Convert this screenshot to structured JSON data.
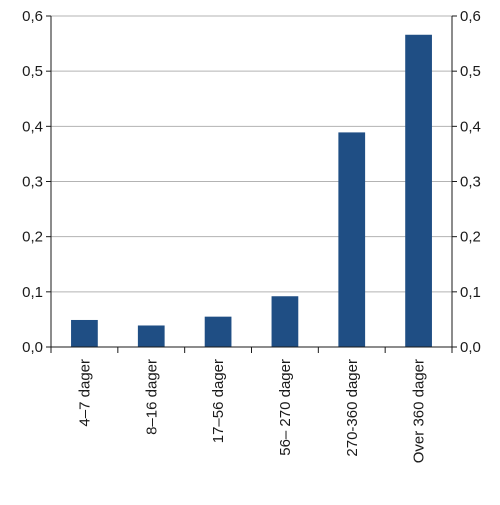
{
  "chart_data": {
    "type": "bar",
    "categories": [
      "4–7 dager",
      "8–16 dager",
      "17–56 dager",
      "56– 270 dager",
      "270-360 dager",
      "Over 360 dager"
    ],
    "values": [
      0.049,
      0.039,
      0.055,
      0.092,
      0.389,
      0.566
    ],
    "ylim": [
      0,
      0.6
    ],
    "yticks": [
      "0,0",
      "0,1",
      "0,2",
      "0,3",
      "0,4",
      "0,5",
      "0,6"
    ],
    "y_axis_right_mirrored": true,
    "grid": "horizontal",
    "title": "",
    "xlabel": "",
    "ylabel": "",
    "bar_color": "#1f4e84",
    "grid_color": "#b3b3b3",
    "axis_color": "#1a1a1a"
  }
}
